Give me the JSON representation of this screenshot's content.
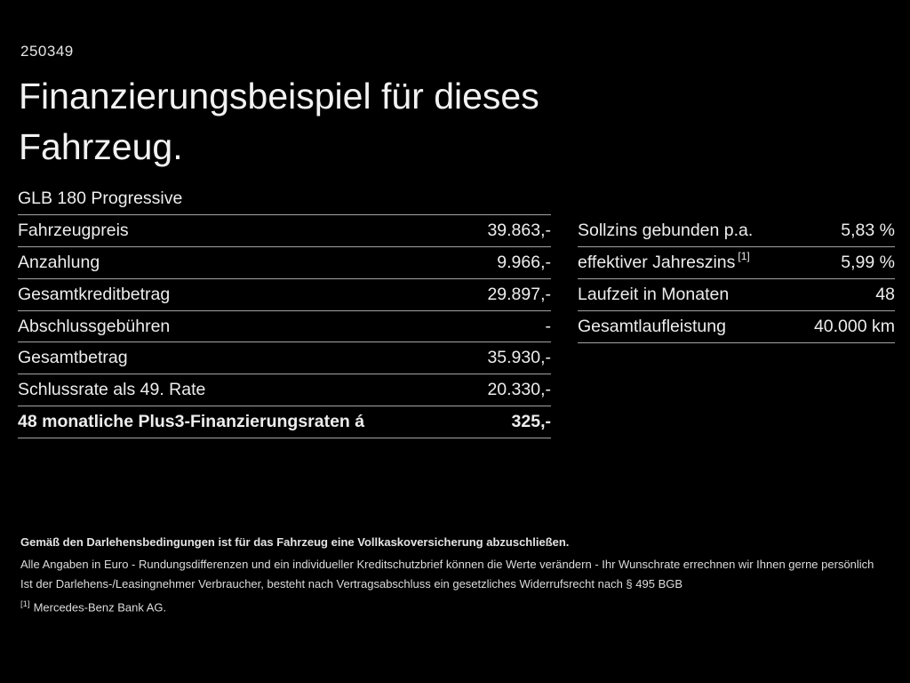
{
  "page": {
    "ref_number": "250349",
    "title": "Finanzierungsbeispiel für dieses Fahrzeug.",
    "vehicle_model": "GLB 180 Progressive"
  },
  "finance_table": {
    "rows": [
      {
        "label": "Fahrzeugpreis",
        "value": "39.863,-"
      },
      {
        "label": "Anzahlung",
        "value": "9.966,-"
      },
      {
        "label": "Gesamtkreditbetrag",
        "value": "29.897,-"
      },
      {
        "label": "Abschlussgebühren",
        "value": "-"
      },
      {
        "label": "Gesamtbetrag",
        "value": "35.930,-"
      },
      {
        "label": "Schlussrate als 49. Rate",
        "value": "20.330,-"
      },
      {
        "label": "48 monatliche Plus3-Finanzierungsraten á",
        "value": "325,-"
      }
    ]
  },
  "conditions_table": {
    "rows": [
      {
        "label": "Sollzins gebunden p.a.",
        "sup": "",
        "value": "5,83 %"
      },
      {
        "label": "effektiver Jahreszins",
        "sup": "[1]",
        "value": "5,99 %"
      },
      {
        "label": "Laufzeit in Monaten",
        "sup": "",
        "value": "48"
      },
      {
        "label": "Gesamtlaufleistung",
        "sup": "",
        "value": "40.000 km"
      }
    ]
  },
  "footer": {
    "insurance_note": "Gemäß den Darlehensbedingungen ist für das Fahrzeug eine Vollkaskoversicherung abzuschließen.",
    "disclaimer_line1": "Alle Angaben in Euro - Rundungsdifferenzen und ein individueller Kreditschutzbrief können die Werte verändern - Ihr Wunschrate errechnen wir Ihnen gerne persönlich",
    "disclaimer_line2": "Ist der Darlehens-/Leasingnehmer Verbraucher, besteht nach Vertragsabschluss ein gesetzliches Widerrufsrecht nach § 495 BGB",
    "footnote_marker": "[1]",
    "footnote_text": "Mercedes-Benz Bank AG."
  },
  "colors": {
    "background": "#000000",
    "text": "#ededed",
    "divider": "#a3a3a3"
  }
}
